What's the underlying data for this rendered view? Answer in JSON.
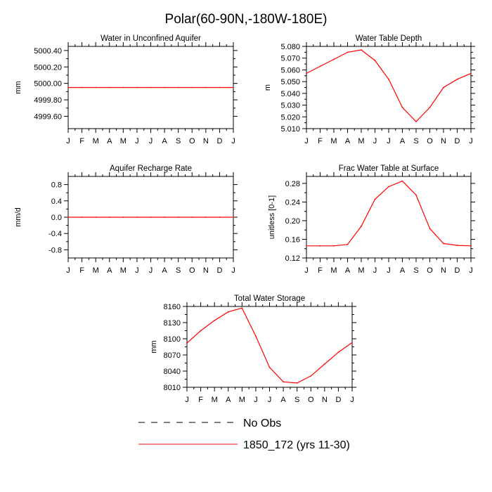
{
  "figure": {
    "title": "Polar(60-90N,-180W-180E)"
  },
  "legend": {
    "entries": [
      {
        "label": "No Obs",
        "color": "#000000",
        "dash": true
      },
      {
        "label": "1850_172 (yrs 11-30)",
        "color": "#ff0000",
        "dash": false
      }
    ]
  },
  "chart_data": [
    {
      "type": "line",
      "title": "Water in Unconfined Aquifer",
      "ylabel": "mm",
      "x": [
        "J",
        "F",
        "M",
        "A",
        "M",
        "J",
        "J",
        "A",
        "S",
        "O",
        "N",
        "D",
        "J"
      ],
      "ylim": [
        4999.45,
        5000.45
      ],
      "yticks": [
        5000.4,
        5000.2,
        5000.0,
        4999.8,
        4999.6
      ],
      "ytick_labels": [
        "5000.40",
        "5000.20",
        "5000.00",
        "4999.80",
        "4999.60"
      ],
      "series": [
        {
          "color": "#ff0000",
          "values": [
            4999.95,
            4999.95,
            4999.95,
            4999.95,
            4999.95,
            4999.95,
            4999.95,
            4999.95,
            4999.95,
            4999.95,
            4999.95,
            4999.95,
            4999.95
          ]
        }
      ]
    },
    {
      "type": "line",
      "title": "Water Table Depth",
      "ylabel": "m",
      "x": [
        "J",
        "F",
        "M",
        "A",
        "M",
        "J",
        "J",
        "A",
        "S",
        "O",
        "N",
        "D",
        "J"
      ],
      "ylim": [
        5.01,
        5.08
      ],
      "yticks": [
        5.08,
        5.07,
        5.06,
        5.05,
        5.04,
        5.03,
        5.02,
        5.01
      ],
      "ytick_labels": [
        "5.080",
        "5.070",
        "5.060",
        "5.050",
        "5.040",
        "5.030",
        "5.020",
        "5.010"
      ],
      "series": [
        {
          "color": "#ff0000",
          "values": [
            5.057,
            5.063,
            5.069,
            5.075,
            5.077,
            5.068,
            5.052,
            5.028,
            5.016,
            5.028,
            5.045,
            5.052,
            5.057
          ]
        }
      ]
    },
    {
      "type": "line",
      "title": "Aquifer Recharge Rate",
      "ylabel": "mm/d",
      "x": [
        "J",
        "F",
        "M",
        "A",
        "M",
        "J",
        "J",
        "A",
        "S",
        "O",
        "N",
        "D",
        "J"
      ],
      "ylim": [
        -1.0,
        1.0
      ],
      "yticks": [
        0.8,
        0.4,
        0.0,
        -0.4,
        -0.8
      ],
      "ytick_labels": [
        "0.8",
        "0.4",
        "0.0",
        "-0.4",
        "-0.8"
      ],
      "series": [
        {
          "color": "#ff0000",
          "values": [
            0,
            0,
            0,
            0,
            0,
            0,
            0,
            0,
            0,
            0,
            0,
            0,
            0
          ]
        }
      ]
    },
    {
      "type": "line",
      "title": "Frac Water Table at Surface",
      "ylabel": "unitless [0-1]",
      "x": [
        "J",
        "F",
        "M",
        "A",
        "M",
        "J",
        "J",
        "A",
        "S",
        "O",
        "N",
        "D",
        "J"
      ],
      "ylim": [
        0.12,
        0.295
      ],
      "yticks": [
        0.28,
        0.24,
        0.2,
        0.16,
        0.12
      ],
      "ytick_labels": [
        "0.28",
        "0.24",
        "0.20",
        "0.16",
        "0.12"
      ],
      "series": [
        {
          "color": "#ff0000",
          "values": [
            0.146,
            0.146,
            0.146,
            0.149,
            0.188,
            0.246,
            0.273,
            0.285,
            0.255,
            0.183,
            0.151,
            0.147,
            0.146
          ]
        }
      ]
    },
    {
      "type": "line",
      "title": "Total Water Storage",
      "ylabel": "mm",
      "x": [
        "J",
        "F",
        "M",
        "A",
        "M",
        "J",
        "J",
        "A",
        "S",
        "O",
        "N",
        "D",
        "J"
      ],
      "ylim": [
        8010,
        8160
      ],
      "yticks": [
        8160,
        8130,
        8100,
        8070,
        8040,
        8010
      ],
      "ytick_labels": [
        "8160",
        "8130",
        "8100",
        "8070",
        "8040",
        "8010"
      ],
      "series": [
        {
          "color": "#ff0000",
          "values": [
            8092,
            8115,
            8134,
            8150,
            8157,
            8105,
            8047,
            8020,
            8018,
            8031,
            8053,
            8075,
            8093
          ]
        }
      ]
    }
  ]
}
